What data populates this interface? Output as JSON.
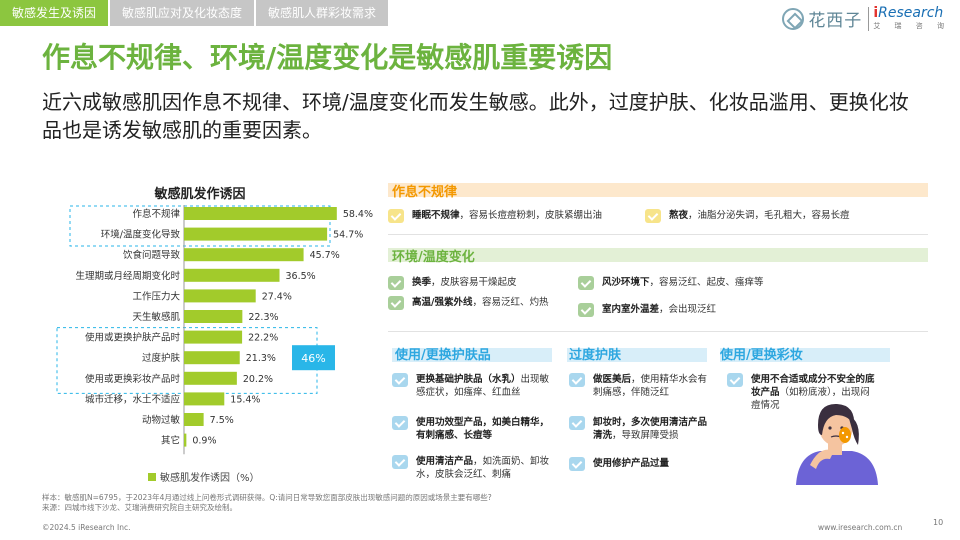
{
  "tabs": [
    "敏感发生及诱因",
    "敏感肌应对及化妆态度",
    "敏感肌人群彩妆需求"
  ],
  "logo": {
    "huaxizi": "花西子",
    "iresearch_i": "i",
    "iresearch": "Research",
    "sub": "艾 瑞 咨 询"
  },
  "title": "作息不规律、环境/温度变化是敏感肌重要诱因",
  "subtitle": "近六成敏感肌因作息不规律、环境/温度变化而发生敏感。此外，过度护肤、化妆品滥用、更换化妆品也是诱发敏感肌的重要因素。",
  "chart_data": {
    "type": "bar",
    "title": "敏感肌发作诱因",
    "categories": [
      "作息不规律",
      "环境/温度变化导致",
      "饮食问题导致",
      "生理期或月经周期变化时",
      "工作压力大",
      "天生敏感肌",
      "使用或更换护肤产品时",
      "过度护肤",
      "使用或更换彩妆产品时",
      "城市迁移，水土不适应",
      "动物过敏",
      "其它"
    ],
    "values": [
      58.4,
      54.7,
      45.7,
      36.5,
      27.4,
      22.3,
      22.2,
      21.3,
      20.2,
      15.4,
      7.5,
      0.9
    ],
    "value_labels": [
      "58.4%",
      "54.7%",
      "45.7%",
      "36.5%",
      "27.4%",
      "22.3%",
      "22.2%",
      "21.3%",
      "20.2%",
      "15.4%",
      "7.5%",
      "0.9%"
    ],
    "legend": "敏感肌发作诱因（%）",
    "callout": "46%",
    "bar_color": "#a2cb2b",
    "callout_color": "#29b6e8"
  },
  "right": {
    "sec1": {
      "title": "作息不规律",
      "items": [
        {
          "bold": "睡眠不规律",
          "text": "，容易长痘痘粉刺，皮肤紧绷出油"
        },
        {
          "bold": "熬夜",
          "text": "，油脂分泌失调，毛孔粗大，容易长痘"
        }
      ]
    },
    "sec2": {
      "title": "环境/温度变化",
      "items": [
        {
          "bold": "换季",
          "text": "，皮肤容易干燥起皮"
        },
        {
          "bold": "风沙环境下",
          "text": "，容易泛红、起皮、瘙痒等"
        },
        {
          "bold": "高温/强紫外线",
          "text": "，容易泛红、灼热"
        },
        {
          "bold": "室内室外温差",
          "text": "，会出现泛红"
        }
      ]
    },
    "sec3": {
      "title": "使用/更换护肤品",
      "items": [
        {
          "bold": "更换基础护肤品（水乳）",
          "text": "出现敏感症状，如瘙痒、红血丝"
        },
        {
          "bold": "使用功效型产品，如美白精华，有刺痛感、长痘等",
          "text": ""
        },
        {
          "bold": "使用清洁产品",
          "text": "，如洗面奶、卸妆水，皮肤会泛红、刺痛"
        }
      ]
    },
    "sec4": {
      "title": "过度护肤",
      "items": [
        {
          "bold": "做医美后",
          "text": "，使用精华水会有刺痛感，伴随泛红"
        },
        {
          "bold": "卸妆时，多次使用清洁产品清洗",
          "text": "，导致屏障受损"
        },
        {
          "bold": "使用修护产品过量",
          "text": ""
        }
      ]
    },
    "sec5": {
      "title": "使用/更换彩妆",
      "items": [
        {
          "bold": "使用不合适或成分不安全的底妆产品",
          "text": "（如粉底液），出现闷痘情况"
        }
      ]
    }
  },
  "footnote": [
    "样本：敏感肌N=6795，于2023年4月通过线上问卷形式调研获得。Q:请问日常导致您面部皮肤出现敏感问题的原因或场景主要有哪些?",
    "来源：四城市线下沙龙、艾瑞消费研究院自主研究及绘制。"
  ],
  "footer_left": "©2024.5 iResearch Inc.",
  "footer_right": "www.iresearch.com.cn",
  "page_number": "10"
}
